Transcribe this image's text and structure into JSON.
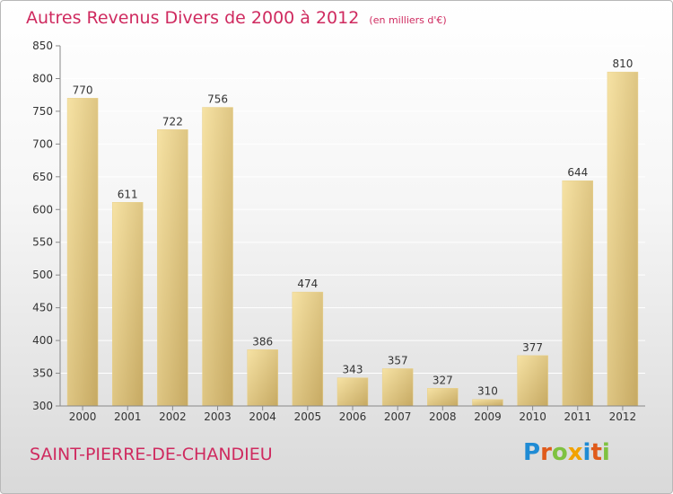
{
  "title": "Autres Revenus Divers de 2000 à 2012",
  "subtitle": "(en milliers d'€)",
  "place": "SAINT-PIERRE-DE-CHANDIEU",
  "logo": {
    "letters": [
      {
        "ch": "P",
        "color": "#1f8bd4"
      },
      {
        "ch": "r",
        "color": "#e05a1a"
      },
      {
        "ch": "o",
        "color": "#7fc241"
      },
      {
        "ch": "x",
        "color": "#f2a200"
      },
      {
        "ch": "i",
        "color": "#1f8bd4"
      },
      {
        "ch": "t",
        "color": "#e05a1a"
      },
      {
        "ch": "i",
        "color": "#7fc241"
      }
    ]
  },
  "colors": {
    "title": "#cf2a5f",
    "bar_light": "#f4dc9a",
    "bar_dark": "#c9ac64",
    "grid": "#ffffff"
  },
  "chart_data": {
    "type": "bar",
    "title": "Autres Revenus Divers de 2000 à 2012",
    "subtitle": "(en milliers d'€)",
    "xlabel": "",
    "ylabel": "",
    "categories": [
      "2000",
      "2001",
      "2002",
      "2003",
      "2004",
      "2005",
      "2006",
      "2007",
      "2008",
      "2009",
      "2010",
      "2011",
      "2012"
    ],
    "values": [
      770,
      611,
      722,
      756,
      386,
      474,
      343,
      357,
      327,
      310,
      377,
      644,
      810
    ],
    "ylim": [
      300,
      850
    ],
    "yticks": [
      300,
      350,
      400,
      450,
      500,
      550,
      600,
      650,
      700,
      750,
      800,
      850
    ],
    "grid": true,
    "data_labels": true
  }
}
